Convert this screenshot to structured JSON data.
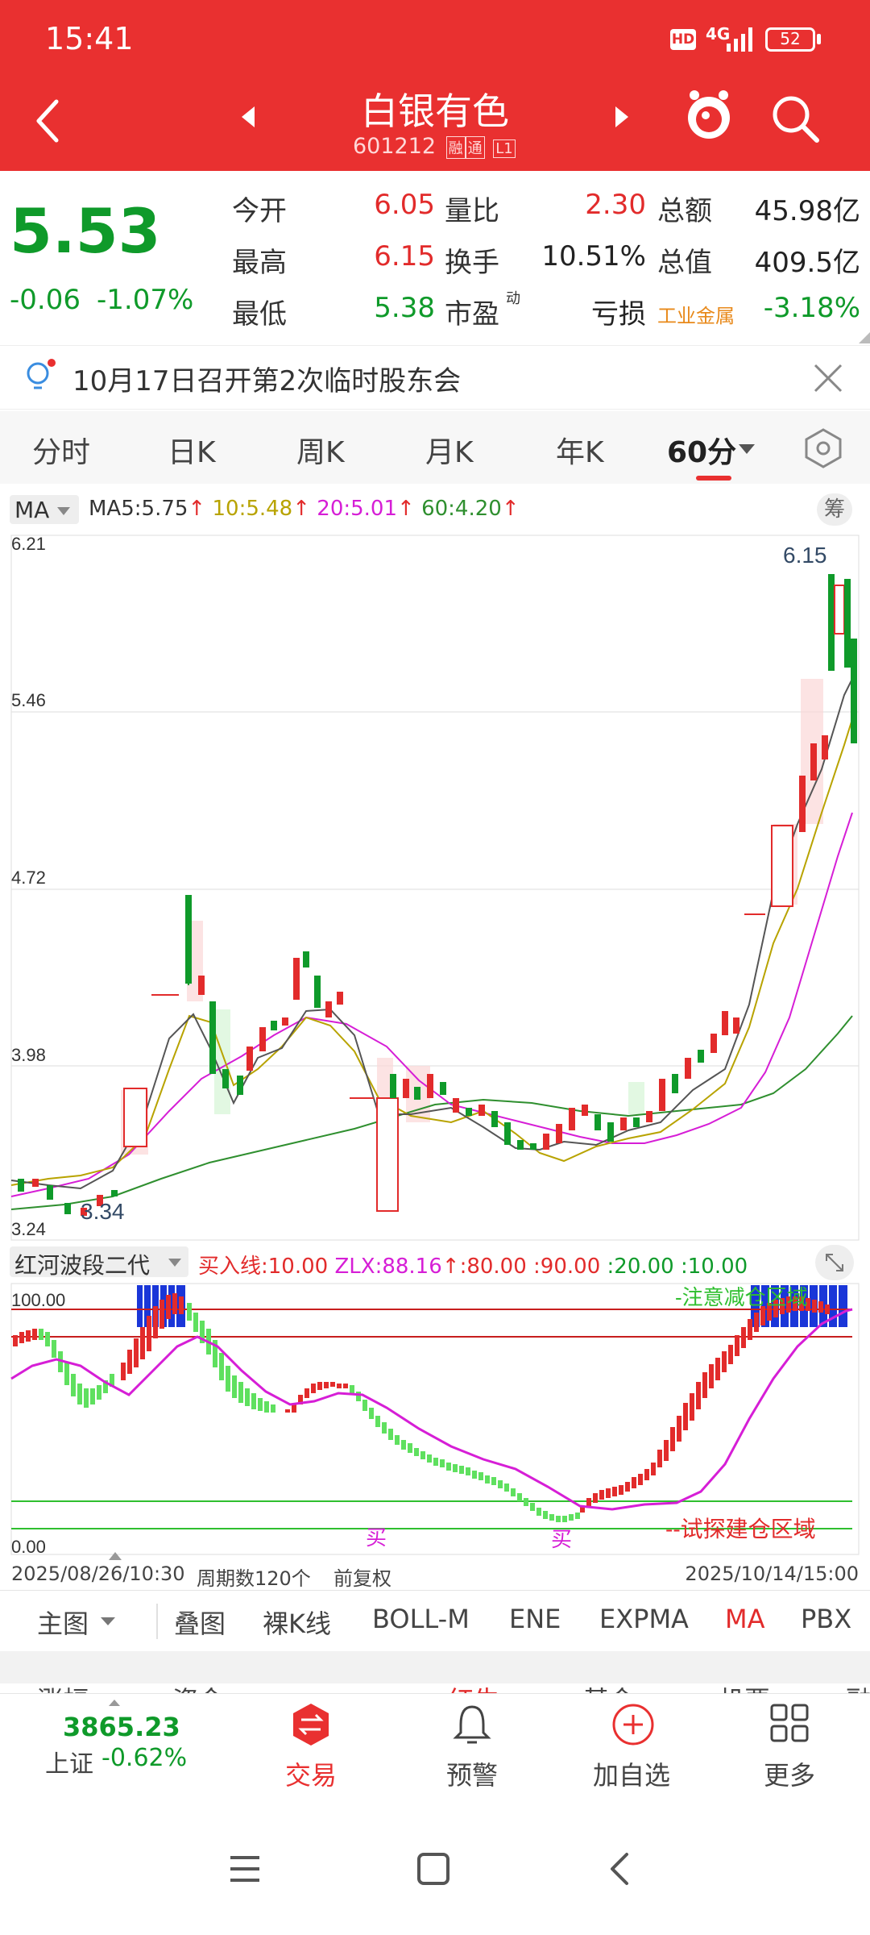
{
  "status": {
    "time": "15:41",
    "hd": "HD",
    "network": "4G",
    "battery": "52"
  },
  "header": {
    "title": "白银有色",
    "code": "601212",
    "tag1": "融",
    "tag2": "通",
    "tag3": "L1"
  },
  "quote": {
    "price": "5.53",
    "change": "-0.06",
    "change_pct": "-1.07%",
    "rows": [
      {
        "l1": "今开",
        "v1": "6.05",
        "l2": "量比",
        "v2": "2.30",
        "l3": "总额",
        "v3": "45.98亿"
      },
      {
        "l1": "最高",
        "v1": "6.15",
        "l2": "换手",
        "v2": "10.51%",
        "l3": "总值",
        "v3": "409.5亿"
      },
      {
        "l1": "最低",
        "v1": "5.38",
        "l2": "市盈",
        "l2sup": "动",
        "v2": "亏损",
        "l3": "工业金属",
        "v3": "-3.18%"
      }
    ]
  },
  "notice": {
    "text": "10月17日召开第2次临时股东会"
  },
  "tabs": [
    "分时",
    "日K",
    "周K",
    "月K",
    "年K",
    "60分"
  ],
  "ma_bar": {
    "label": "MA",
    "ma5": "MA5:5.75",
    "ma10": "10:5.48",
    "ma20": "20:5.01",
    "ma60": "60:4.20",
    "arrow": "↑",
    "badge": "筹"
  },
  "chart": {
    "y_labels": [
      "6.21",
      "5.46",
      "4.72",
      "3.98",
      "3.24"
    ],
    "high_label": "6.15",
    "low_label": "3.34"
  },
  "indicator": {
    "name": "红河波段二代",
    "buy_line": "买入线:10.00",
    "zlx": "ZLX:88.16",
    "arrow": "↑",
    "v80": ":80.00",
    "v90": ":90.00",
    "v20": ":20.00",
    "v10": ":10.00",
    "top_label": "100.00",
    "bottom_label": "0.00",
    "warn_text": "-注意减仓区域",
    "buy_text": "--试探建仓区域",
    "buy_mark": "买"
  },
  "date_bar": {
    "start": "2025/08/26/10:30",
    "period": "周期数120个",
    "adj": "前复权",
    "end": "2025/10/14/15:00"
  },
  "indicators_bar": [
    "主图",
    "叠图",
    "裸K线",
    "BOLL-M",
    "ENE",
    "EXPMA",
    "MA",
    "PBX"
  ],
  "cut_row": [
    "涨幅",
    "资金",
    "红牛",
    "基金",
    "机要",
    "融"
  ],
  "bottomnav": {
    "index_value": "3865.23",
    "index_name": "上证",
    "index_change": "-0.62%",
    "trade": "交易",
    "alert": "预警",
    "add": "加自选",
    "more": "更多"
  },
  "colors": {
    "brand_red": "#e93030",
    "down_green": "#0f9a2a",
    "up_red": "#e22b2b",
    "ma10": "#b8a300",
    "ma20": "#d61ed6",
    "ma60": "#2f8f2f"
  }
}
